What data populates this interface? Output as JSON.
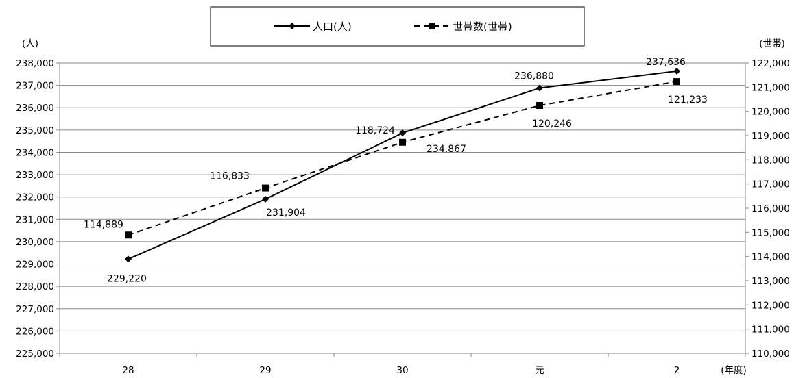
{
  "chart_data": {
    "type": "line",
    "categories": [
      "28",
      "29",
      "30",
      "元",
      "2"
    ],
    "series": [
      {
        "name": "人口(人)",
        "axis": "left",
        "values": [
          229220,
          231904,
          234867,
          236880,
          237636
        ],
        "labels": [
          "229,220",
          "231,904",
          "234,867",
          "236,880",
          "237,636"
        ],
        "line_style": "solid",
        "marker": "diamond",
        "color": "#000000"
      },
      {
        "name": "世帯数(世帯)",
        "axis": "right",
        "values": [
          114889,
          116833,
          118724,
          120246,
          121233
        ],
        "labels": [
          "114,889",
          "116,833",
          "118,724",
          "120,246",
          "121,233"
        ],
        "line_style": "dashed",
        "marker": "square",
        "color": "#000000"
      }
    ],
    "y_left": {
      "unit_label": "(人)",
      "ylim": [
        225000,
        238000
      ],
      "ticks": [
        "225,000",
        "226,000",
        "227,000",
        "228,000",
        "229,000",
        "230,000",
        "231,000",
        "232,000",
        "233,000",
        "234,000",
        "235,000",
        "236,000",
        "237,000",
        "238,000"
      ]
    },
    "y_right": {
      "unit_label": "(世帯)",
      "ylim": [
        110000,
        122000
      ],
      "ticks": [
        "110,000",
        "111,000",
        "112,000",
        "113,000",
        "114,000",
        "115,000",
        "116,000",
        "117,000",
        "118,000",
        "119,000",
        "120,000",
        "121,000",
        "122,000"
      ]
    },
    "x_unit_label": "(年度)",
    "grid": true,
    "legend_position": "top-center"
  }
}
